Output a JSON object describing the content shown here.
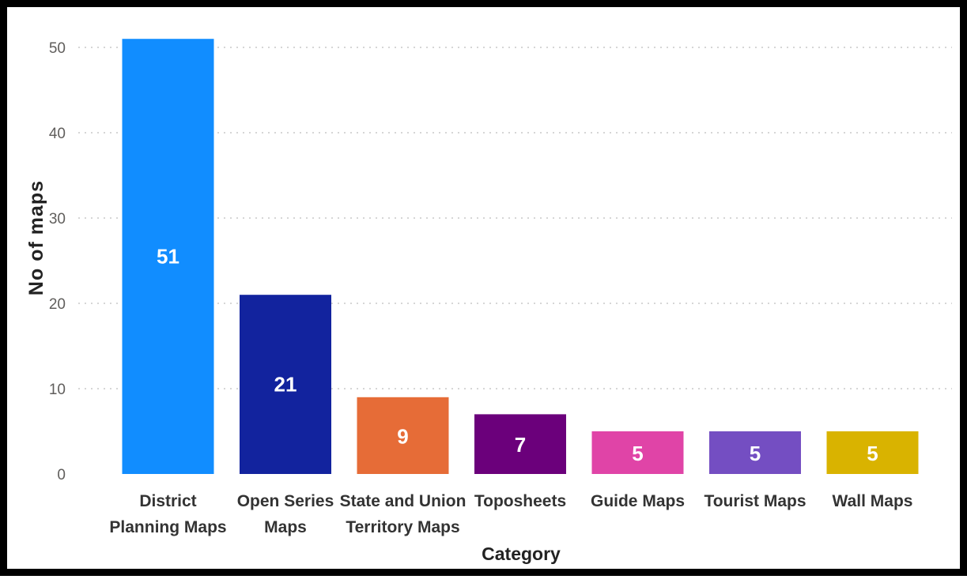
{
  "chart_data": {
    "type": "bar",
    "xlabel": "Category",
    "ylabel": "No of maps",
    "ylim": [
      0,
      50
    ],
    "yticks": [
      0,
      10,
      20,
      30,
      40,
      50
    ],
    "grid": true,
    "categories": [
      "District Planning Maps",
      "Open Series Maps",
      "State and Union Territory Maps",
      "Toposheets",
      "Guide Maps",
      "Tourist Maps",
      "Wall Maps"
    ],
    "category_lines": [
      [
        "District",
        "Planning Maps"
      ],
      [
        "Open Series",
        "Maps"
      ],
      [
        "State and Union",
        "Territory Maps"
      ],
      [
        "Toposheets"
      ],
      [
        "Guide Maps"
      ],
      [
        "Tourist Maps"
      ],
      [
        "Wall Maps"
      ]
    ],
    "values": [
      51,
      21,
      9,
      7,
      5,
      5,
      5
    ],
    "colors": [
      "#118dff",
      "#12239e",
      "#e66c37",
      "#6b007b",
      "#e044a7",
      "#744ec2",
      "#d9b300"
    ],
    "data_labels": true
  }
}
